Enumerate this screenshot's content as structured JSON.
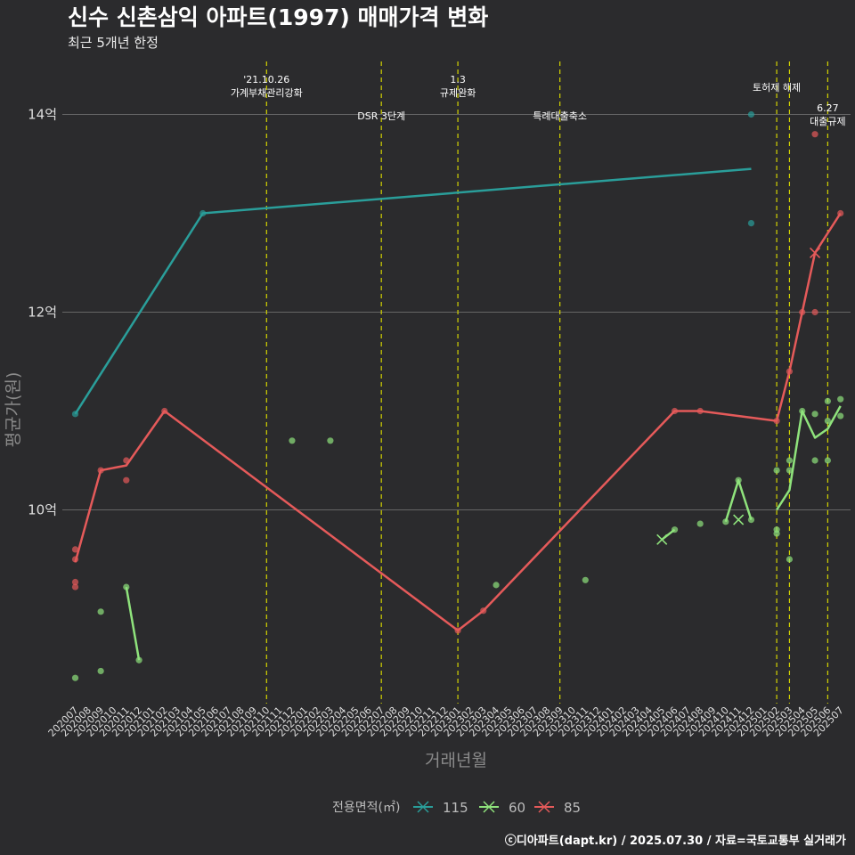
{
  "chart_data": {
    "type": "line",
    "title": "신수 신촌삼익 아파트(1997) 매매가격 변화",
    "subtitle": "최근 5개년 한정",
    "xlabel": "거래년월",
    "ylabel": "평균가(원)",
    "caption": "ⓒ디아파트(dapt.kr) / 2025.07.30 / 자료=국토교통부 실거래가",
    "y_ticks": [
      {
        "value": 10,
        "label": "10억"
      },
      {
        "value": 12,
        "label": "12억"
      },
      {
        "value": 14,
        "label": "14억"
      }
    ],
    "ylim": [
      8.0,
      14.6
    ],
    "x_categories": [
      "202007",
      "202008",
      "202009",
      "202010",
      "202011",
      "202012",
      "202101",
      "202102",
      "202103",
      "202104",
      "202105",
      "202106",
      "202107",
      "202108",
      "202109",
      "202110",
      "202111",
      "202112",
      "202201",
      "202202",
      "202203",
      "202204",
      "202205",
      "202206",
      "202207",
      "202208",
      "202209",
      "202210",
      "202211",
      "202212",
      "202301",
      "202302",
      "202303",
      "202304",
      "202305",
      "202306",
      "202307",
      "202308",
      "202309",
      "202310",
      "202311",
      "202312",
      "202401",
      "202402",
      "202403",
      "202404",
      "202405",
      "202406",
      "202407",
      "202408",
      "202409",
      "202410",
      "202411",
      "202412",
      "202501",
      "202502",
      "202503",
      "202504",
      "202505",
      "202506",
      "202507"
    ],
    "events": [
      {
        "x": "202110",
        "lines": [
          "'21.10.26",
          "가계부채관리강화"
        ],
        "row": 0
      },
      {
        "x": "202207",
        "lines": [
          "DSR 3단계"
        ],
        "row": 2
      },
      {
        "x": "202301",
        "lines": [
          "1.3",
          "규제완화"
        ],
        "row": 0
      },
      {
        "x": "202309",
        "lines": [
          "특례대출축소"
        ],
        "row": 2
      },
      {
        "x": "202502",
        "lines": [
          "토허제 해제"
        ],
        "row": 1
      },
      {
        "x": "202503",
        "lines": [],
        "row": 1
      },
      {
        "x": "202506",
        "lines": [
          "6.27",
          "대출규제"
        ],
        "row": 3
      }
    ],
    "legend": {
      "title": "전용면적(㎡)",
      "placement": "bottom"
    },
    "series": [
      {
        "name": "115",
        "color": "#2a9e9a",
        "line": [
          {
            "x": "202007",
            "y": 10.97
          },
          {
            "x": "202105",
            "y": 13.0
          },
          {
            "x": "202412",
            "y": 13.45
          }
        ],
        "points": [
          {
            "x": "202007",
            "y": 10.97
          },
          {
            "x": "202105",
            "y": 13.0
          },
          {
            "x": "202412",
            "y": 14.0
          },
          {
            "x": "202412",
            "y": 12.9
          }
        ],
        "crosses": []
      },
      {
        "name": "60",
        "color": "#8fe37c",
        "line_segments": [
          [
            {
              "x": "202011",
              "y": 9.22
            },
            {
              "x": "202012",
              "y": 8.48
            }
          ],
          [
            {
              "x": "202405",
              "y": 9.7
            },
            {
              "x": "202406",
              "y": 9.8
            }
          ],
          [
            {
              "x": "202410",
              "y": 9.88
            },
            {
              "x": "202411",
              "y": 10.3
            },
            {
              "x": "202412",
              "y": 9.9
            }
          ],
          [
            {
              "x": "202502",
              "y": 10.0
            },
            {
              "x": "202503",
              "y": 10.2
            },
            {
              "x": "202504",
              "y": 11.0
            },
            {
              "x": "202505",
              "y": 10.73
            },
            {
              "x": "202506",
              "y": 10.82
            },
            {
              "x": "202507",
              "y": 11.05
            }
          ]
        ],
        "points": [
          {
            "x": "202007",
            "y": 8.3
          },
          {
            "x": "202009",
            "y": 8.37
          },
          {
            "x": "202009",
            "y": 8.97
          },
          {
            "x": "202011",
            "y": 9.22
          },
          {
            "x": "202012",
            "y": 8.48
          },
          {
            "x": "202112",
            "y": 10.7
          },
          {
            "x": "202203",
            "y": 10.7
          },
          {
            "x": "202304",
            "y": 9.24
          },
          {
            "x": "202311",
            "y": 9.29
          },
          {
            "x": "202406",
            "y": 9.8
          },
          {
            "x": "202408",
            "y": 9.86
          },
          {
            "x": "202410",
            "y": 9.88
          },
          {
            "x": "202411",
            "y": 10.3
          },
          {
            "x": "202412",
            "y": 9.9
          },
          {
            "x": "202502",
            "y": 9.8
          },
          {
            "x": "202502",
            "y": 9.76
          },
          {
            "x": "202502",
            "y": 10.4
          },
          {
            "x": "202503",
            "y": 9.5
          },
          {
            "x": "202503",
            "y": 10.4
          },
          {
            "x": "202503",
            "y": 10.5
          },
          {
            "x": "202504",
            "y": 11.0
          },
          {
            "x": "202505",
            "y": 10.97
          },
          {
            "x": "202505",
            "y": 10.5
          },
          {
            "x": "202506",
            "y": 11.1
          },
          {
            "x": "202506",
            "y": 10.9
          },
          {
            "x": "202506",
            "y": 10.5
          },
          {
            "x": "202507",
            "y": 11.12
          },
          {
            "x": "202507",
            "y": 10.95
          }
        ],
        "crosses": [
          {
            "x": "202405",
            "y": 9.7
          },
          {
            "x": "202411",
            "y": 9.9
          }
        ]
      },
      {
        "name": "85",
        "color": "#e55a5a",
        "line": [
          {
            "x": "202007",
            "y": 9.47
          },
          {
            "x": "202009",
            "y": 10.4
          },
          {
            "x": "202011",
            "y": 10.45
          },
          {
            "x": "202102",
            "y": 11.0
          },
          {
            "x": "202301",
            "y": 8.78
          },
          {
            "x": "202303",
            "y": 8.98
          },
          {
            "x": "202406",
            "y": 11.0
          },
          {
            "x": "202408",
            "y": 11.0
          },
          {
            "x": "202502",
            "y": 10.9
          },
          {
            "x": "202503",
            "y": 11.4
          },
          {
            "x": "202504",
            "y": 12.0
          },
          {
            "x": "202505",
            "y": 12.6
          },
          {
            "x": "202507",
            "y": 13.0
          }
        ],
        "points": [
          {
            "x": "202007",
            "y": 9.6
          },
          {
            "x": "202007",
            "y": 9.5
          },
          {
            "x": "202007",
            "y": 9.27
          },
          {
            "x": "202007",
            "y": 9.22
          },
          {
            "x": "202009",
            "y": 10.4
          },
          {
            "x": "202011",
            "y": 10.5
          },
          {
            "x": "202011",
            "y": 10.3
          },
          {
            "x": "202102",
            "y": 11.0
          },
          {
            "x": "202301",
            "y": 8.78
          },
          {
            "x": "202303",
            "y": 8.98
          },
          {
            "x": "202406",
            "y": 11.0
          },
          {
            "x": "202408",
            "y": 11.0
          },
          {
            "x": "202502",
            "y": 10.9
          },
          {
            "x": "202503",
            "y": 11.4
          },
          {
            "x": "202504",
            "y": 12.0
          },
          {
            "x": "202505",
            "y": 12.0
          },
          {
            "x": "202505",
            "y": 13.8
          },
          {
            "x": "202507",
            "y": 13.0
          }
        ],
        "crosses": [
          {
            "x": "202505",
            "y": 12.6
          }
        ]
      }
    ]
  }
}
